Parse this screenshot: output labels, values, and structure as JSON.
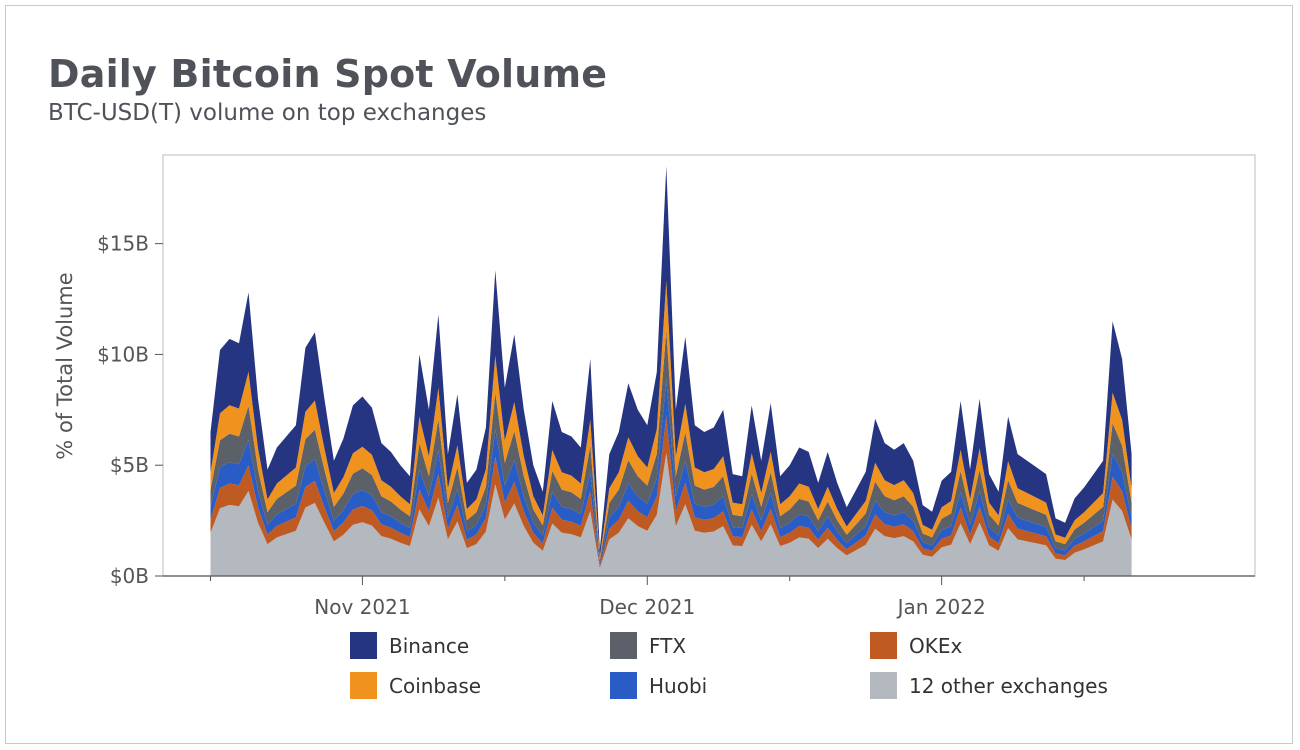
{
  "title": "Daily Bitcoin Spot Volume",
  "subtitle": "BTC-USD(T) volume on top exchanges",
  "chart_data": {
    "type": "area",
    "stacked": true,
    "title": "Daily Bitcoin Spot Volume",
    "subtitle": "BTC-USD(T) volume on top exchanges",
    "ylabel": "% of Total Volume",
    "xlabel": "",
    "y_ticks": [
      "$0B",
      "$5B",
      "$10B",
      "$15B"
    ],
    "y_tick_values": [
      0,
      5,
      10,
      15
    ],
    "ylim": [
      0,
      19
    ],
    "x_ticks": [
      "Nov 2021",
      "Dec 2021",
      "Jan 2022"
    ],
    "x_tick_dates": [
      "2021-11-01",
      "2021-12-01",
      "2022-01-01"
    ],
    "x_start": "2021-10-16",
    "x_end": "2022-01-22",
    "xlim": [
      "2021-10-11",
      "2022-02-03"
    ],
    "legend_position": "bottom",
    "total_points": [
      [
        "2021-10-16",
        6.5
      ],
      [
        "2021-10-17",
        10.2
      ],
      [
        "2021-10-18",
        10.7
      ],
      [
        "2021-10-19",
        10.5
      ],
      [
        "2021-10-20",
        12.8
      ],
      [
        "2021-10-21",
        8.0
      ],
      [
        "2021-10-22",
        4.8
      ],
      [
        "2021-10-23",
        5.8
      ],
      [
        "2021-10-24",
        6.3
      ],
      [
        "2021-10-25",
        6.8
      ],
      [
        "2021-10-26",
        10.3
      ],
      [
        "2021-10-27",
        11.0
      ],
      [
        "2021-10-28",
        8.0
      ],
      [
        "2021-10-29",
        5.2
      ],
      [
        "2021-10-30",
        6.2
      ],
      [
        "2021-10-31",
        7.7
      ],
      [
        "2021-11-01",
        8.1
      ],
      [
        "2021-11-02",
        7.6
      ],
      [
        "2021-11-03",
        6.0
      ],
      [
        "2021-11-04",
        5.6
      ],
      [
        "2021-11-05",
        5.0
      ],
      [
        "2021-11-06",
        4.5
      ],
      [
        "2021-11-07",
        10.0
      ],
      [
        "2021-11-08",
        7.5
      ],
      [
        "2021-11-09",
        11.8
      ],
      [
        "2021-11-10",
        5.5
      ],
      [
        "2021-11-11",
        8.2
      ],
      [
        "2021-11-12",
        4.2
      ],
      [
        "2021-11-13",
        4.8
      ],
      [
        "2021-11-14",
        6.7
      ],
      [
        "2021-11-15",
        13.8
      ],
      [
        "2021-11-16",
        8.5
      ],
      [
        "2021-11-17",
        10.9
      ],
      [
        "2021-11-18",
        7.5
      ],
      [
        "2021-11-19",
        5.0
      ],
      [
        "2021-11-20",
        3.8
      ],
      [
        "2021-11-21",
        7.9
      ],
      [
        "2021-11-22",
        6.5
      ],
      [
        "2021-11-23",
        6.3
      ],
      [
        "2021-11-24",
        5.8
      ],
      [
        "2021-11-25",
        9.8
      ],
      [
        "2021-11-26",
        1.2
      ],
      [
        "2021-11-27",
        5.5
      ],
      [
        "2021-11-28",
        6.5
      ],
      [
        "2021-11-29",
        8.7
      ],
      [
        "2021-11-30",
        7.5
      ],
      [
        "2021-12-01",
        6.8
      ],
      [
        "2021-12-02",
        9.2
      ],
      [
        "2021-12-03",
        18.5
      ],
      [
        "2021-12-04",
        7.5
      ],
      [
        "2021-12-05",
        10.8
      ],
      [
        "2021-12-06",
        6.8
      ],
      [
        "2021-12-07",
        6.5
      ],
      [
        "2021-12-08",
        6.7
      ],
      [
        "2021-12-09",
        7.5
      ],
      [
        "2021-12-10",
        4.6
      ],
      [
        "2021-12-11",
        4.5
      ],
      [
        "2021-12-12",
        7.7
      ],
      [
        "2021-12-13",
        5.2
      ],
      [
        "2021-12-14",
        7.8
      ],
      [
        "2021-12-15",
        4.5
      ],
      [
        "2021-12-16",
        5.0
      ],
      [
        "2021-12-17",
        5.8
      ],
      [
        "2021-12-18",
        5.6
      ],
      [
        "2021-12-19",
        4.2
      ],
      [
        "2021-12-20",
        5.6
      ],
      [
        "2021-12-21",
        4.2
      ],
      [
        "2021-12-22",
        3.1
      ],
      [
        "2021-12-23",
        3.9
      ],
      [
        "2021-12-24",
        4.7
      ],
      [
        "2021-12-25",
        7.1
      ],
      [
        "2021-12-26",
        6.0
      ],
      [
        "2021-12-27",
        5.7
      ],
      [
        "2021-12-28",
        6.0
      ],
      [
        "2021-12-29",
        5.2
      ],
      [
        "2021-12-30",
        3.2
      ],
      [
        "2021-12-31",
        2.9
      ],
      [
        "2022-01-01",
        4.3
      ],
      [
        "2022-01-02",
        4.7
      ],
      [
        "2022-01-03",
        7.9
      ],
      [
        "2022-01-04",
        4.8
      ],
      [
        "2022-01-05",
        8.0
      ],
      [
        "2022-01-06",
        4.6
      ],
      [
        "2022-01-07",
        3.8
      ],
      [
        "2022-01-08",
        7.2
      ],
      [
        "2022-01-09",
        5.5
      ],
      [
        "2022-01-10",
        5.2
      ],
      [
        "2022-01-11",
        4.9
      ],
      [
        "2022-01-12",
        4.6
      ],
      [
        "2022-01-13",
        2.6
      ],
      [
        "2022-01-14",
        2.4
      ],
      [
        "2022-01-15",
        3.5
      ],
      [
        "2022-01-16",
        4.0
      ],
      [
        "2022-01-17",
        4.6
      ],
      [
        "2022-01-18",
        5.2
      ],
      [
        "2022-01-19",
        11.5
      ],
      [
        "2022-01-20",
        9.8
      ],
      [
        "2022-01-21",
        5.5
      ]
    ],
    "series": [
      {
        "name": "12 other exchanges",
        "color": "#b4b8bf",
        "share": 0.3
      },
      {
        "name": "OKEx",
        "color": "#bf5a22",
        "share": 0.09
      },
      {
        "name": "Huobi",
        "color": "#2a5cc6",
        "share": 0.09
      },
      {
        "name": "FTX",
        "color": "#5c6068",
        "share": 0.12
      },
      {
        "name": "Coinbase",
        "color": "#f0921e",
        "share": 0.12
      },
      {
        "name": "Binance",
        "color": "#263582",
        "share": 0.28
      }
    ]
  },
  "legend": [
    {
      "name": "Binance",
      "color": "#263582"
    },
    {
      "name": "FTX",
      "color": "#5c6068"
    },
    {
      "name": "OKEx",
      "color": "#bf5a22"
    },
    {
      "name": "Coinbase",
      "color": "#f0921e"
    },
    {
      "name": "Huobi",
      "color": "#2a5cc6"
    },
    {
      "name": "12 other exchanges",
      "color": "#b4b8bf"
    }
  ]
}
